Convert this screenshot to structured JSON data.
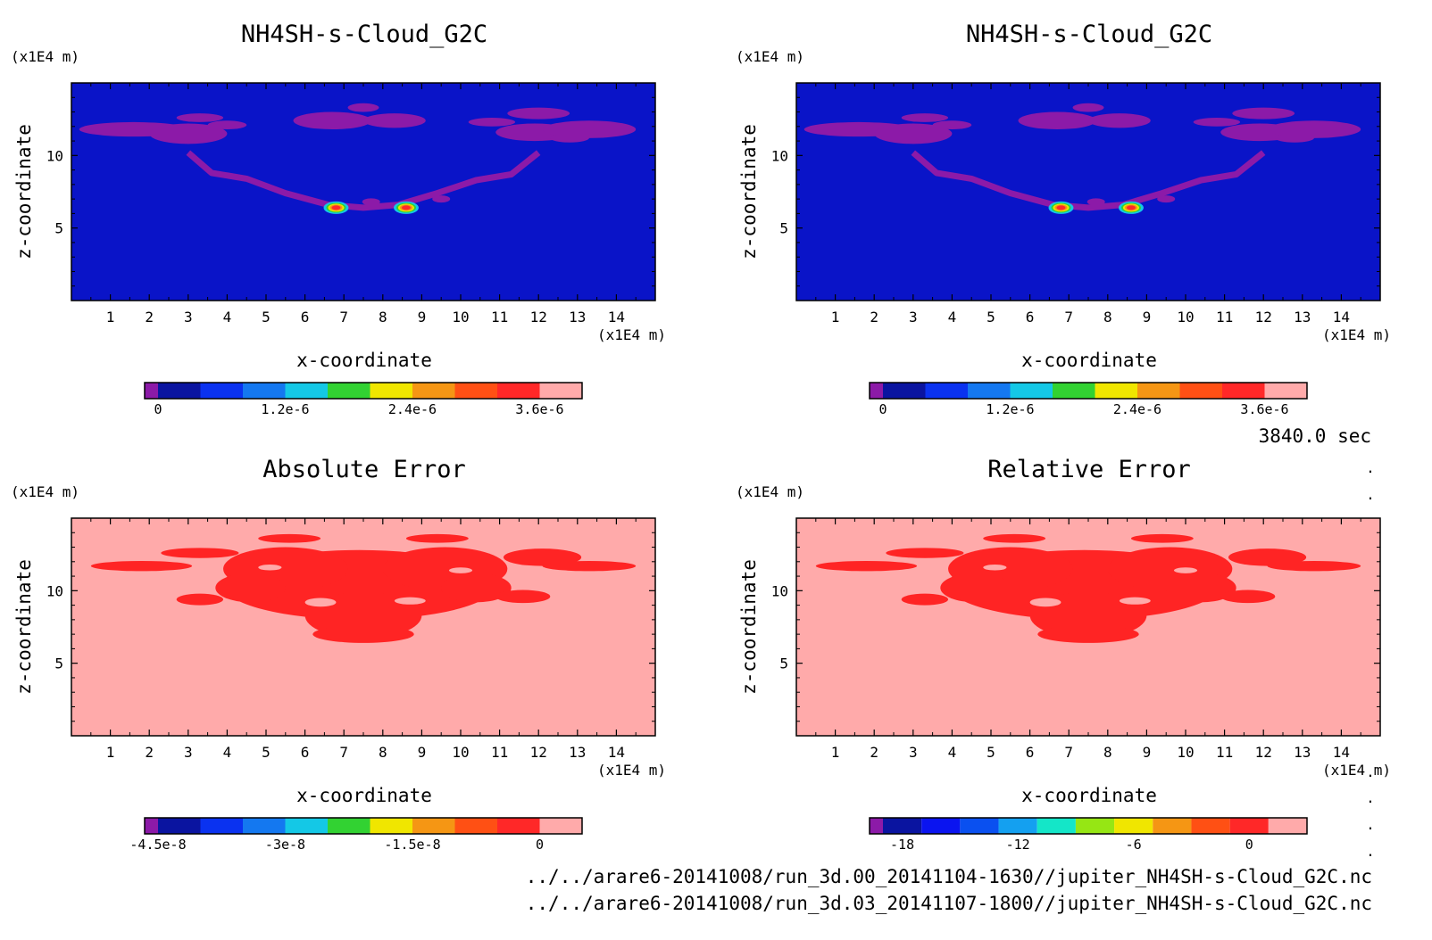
{
  "time_label": "3840.0 sec",
  "files": [
    "../../arare6-20141008/run_3d.00_20141104-1630//jupiter_NH4SH-s-Cloud_G2C.nc",
    "../../arare6-20141008/run_3d.03_20141107-1800//jupiter_NH4SH-s-Cloud_G2C.nc"
  ],
  "colors": {
    "frame": "#000000",
    "background_field": "#0a14c8",
    "cloud_feature": "#8c1aa8",
    "error_background": "#ffaaaa",
    "error_feature": "#ff2424"
  },
  "chart_data": [
    {
      "type": "heatmap",
      "title": "NH4SH-s-Cloud_G2C",
      "unit_label": "(x1E4 m)",
      "xlabel": "x-coordinate",
      "ylabel": "z-coordinate",
      "xunit": "(x1E4 m)",
      "xticks": [
        "1",
        "2",
        "3",
        "4",
        "5",
        "6",
        "7",
        "8",
        "9",
        "10",
        "11",
        "12",
        "13",
        "14"
      ],
      "yticks": [
        "5",
        "10"
      ],
      "xlim": [
        0,
        15
      ],
      "ylim": [
        0,
        15
      ],
      "field_color": "#0a14c8",
      "feature_color": "#8c1aa8",
      "colorbar": {
        "colors": [
          "#8c1aa8",
          "#0a14a0",
          "#0a32f0",
          "#1478f0",
          "#14c8e6",
          "#32d232",
          "#f0e600",
          "#f59614",
          "#ff5014",
          "#ff2828",
          "#ffaaaa"
        ],
        "labels": [
          "0",
          "1.2e-6",
          "2.4e-6",
          "3.6e-6"
        ],
        "label_positions": [
          0,
          3,
          6,
          9
        ],
        "min": 0,
        "max": 4e-06
      }
    },
    {
      "type": "heatmap",
      "title": "NH4SH-s-Cloud_G2C",
      "unit_label": "(x1E4 m)",
      "xlabel": "x-coordinate",
      "ylabel": "z-coordinate",
      "xunit": "(x1E4 m)",
      "xticks": [
        "1",
        "2",
        "3",
        "4",
        "5",
        "6",
        "7",
        "8",
        "9",
        "10",
        "11",
        "12",
        "13",
        "14"
      ],
      "yticks": [
        "5",
        "10"
      ],
      "xlim": [
        0,
        15
      ],
      "ylim": [
        0,
        15
      ],
      "field_color": "#0a14c8",
      "feature_color": "#8c1aa8",
      "colorbar": {
        "colors": [
          "#8c1aa8",
          "#0a14a0",
          "#0a32f0",
          "#1478f0",
          "#14c8e6",
          "#32d232",
          "#f0e600",
          "#f59614",
          "#ff5014",
          "#ff2828",
          "#ffaaaa"
        ],
        "labels": [
          "0",
          "1.2e-6",
          "2.4e-6",
          "3.6e-6"
        ],
        "label_positions": [
          0,
          3,
          6,
          9
        ],
        "min": 0,
        "max": 4e-06
      }
    },
    {
      "type": "heatmap",
      "title": "Absolute Error",
      "unit_label": "(x1E4 m)",
      "xlabel": "x-coordinate",
      "ylabel": "z-coordinate",
      "xunit": "(x1E4 m)",
      "xticks": [
        "1",
        "2",
        "3",
        "4",
        "5",
        "6",
        "7",
        "8",
        "9",
        "10",
        "11",
        "12",
        "13",
        "14"
      ],
      "yticks": [
        "5",
        "10"
      ],
      "xlim": [
        0,
        15
      ],
      "ylim": [
        0,
        15
      ],
      "field_color": "#ffaaaa",
      "feature_color": "#ff2424",
      "colorbar": {
        "colors": [
          "#8c1aa8",
          "#0a14a0",
          "#0a32f0",
          "#1478f0",
          "#14c8e6",
          "#32d232",
          "#f0e600",
          "#f59614",
          "#ff5014",
          "#ff2828",
          "#ffaaaa"
        ],
        "labels": [
          "-4.5e-8",
          "-3e-8",
          "-1.5e-8",
          "0"
        ],
        "label_positions": [
          0,
          3,
          6,
          9
        ],
        "min": -5e-08,
        "max": 5e-09
      }
    },
    {
      "type": "heatmap",
      "title": "Relative Error",
      "unit_label": "(x1E4 m)",
      "xlabel": "x-coordinate",
      "ylabel": "z-coordinate",
      "xunit": "(x1E4 m)",
      "xticks": [
        "1",
        "2",
        "3",
        "4",
        "5",
        "6",
        "7",
        "8",
        "9",
        "10",
        "11",
        "12",
        "13",
        "14"
      ],
      "yticks": [
        "5",
        "10"
      ],
      "xlim": [
        0,
        15
      ],
      "ylim": [
        0,
        15
      ],
      "field_color": "#ffaaaa",
      "feature_color": "#ff2424",
      "colorbar": {
        "colors": [
          "#8c1aa8",
          "#0a14a0",
          "#0a14f0",
          "#0a50f0",
          "#14a0f0",
          "#14e6c8",
          "#96e614",
          "#f0e600",
          "#f59614",
          "#ff5014",
          "#ff2828",
          "#ffaaaa"
        ],
        "labels": [
          "-18",
          "-12",
          "-6",
          "0"
        ],
        "label_positions": [
          0.5,
          3.5,
          6.5,
          9.5
        ],
        "min": -21,
        "max": 3
      }
    }
  ]
}
